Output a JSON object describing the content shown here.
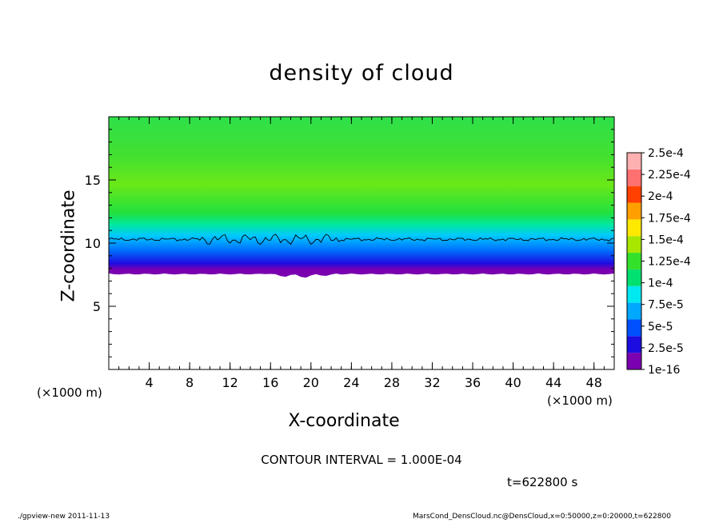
{
  "chart_data": {
    "type": "heatmap",
    "title": "density of cloud",
    "xlabel": "X-coordinate",
    "ylabel": "Z-coordinate",
    "x_unit": "(×1000 m)",
    "xlim": [
      0,
      50
    ],
    "ylim": [
      0,
      20
    ],
    "x_ticks": [
      4,
      8,
      12,
      16,
      20,
      24,
      28,
      32,
      36,
      40,
      44,
      48
    ],
    "y_ticks": [
      5,
      10,
      15
    ],
    "colorbar_labels": [
      "1e-16",
      "2.5e-5",
      "5e-5",
      "7.5e-5",
      "1e-4",
      "1.25e-4",
      "1.5e-4",
      "1.75e-4",
      "2e-4",
      "2.25e-4",
      "2.5e-4"
    ],
    "colorbar_colors": [
      "#7a00b0",
      "#1c0ce0",
      "#0050ff",
      "#00a8ff",
      "#00e8f0",
      "#00e070",
      "#33e02a",
      "#a8e600",
      "#ffe800",
      "#ffa000",
      "#ff4000",
      "#ff7070",
      "#ffb0b0"
    ],
    "cloud_base_z": 7.6,
    "cloud_contour_z": 10.3,
    "contour_interval": "CONTOUR INTERVAL = 1.000E-04",
    "time": "t=622800 s"
  },
  "footer": {
    "left": "./gpview-new   2011-11-13",
    "right": "MarsCond_DensCloud.nc@DensCloud,x=0:50000,z=0:20000,t=622800"
  }
}
